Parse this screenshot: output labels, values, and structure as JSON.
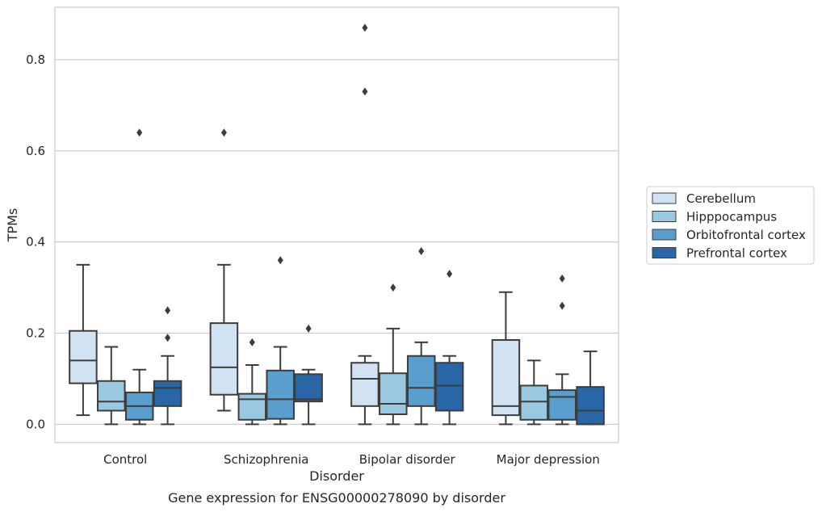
{
  "chart_data": {
    "type": "boxplot",
    "xlabel": "Disorder",
    "ylabel": "TPMs",
    "caption": "Gene expression for ENSG00000278090 by disorder",
    "ylim": [
      -0.04,
      0.915
    ],
    "yticks": [
      0.0,
      0.2,
      0.4,
      0.6,
      0.8
    ],
    "ytick_labels": [
      "0.0",
      "0.2",
      "0.4",
      "0.6",
      "0.8"
    ],
    "grid": "horizontal",
    "legend_position": "right",
    "categories": [
      "Control",
      "Schizophrenia",
      "Bipolar disorder",
      "Major depression"
    ],
    "series": [
      {
        "name": "Cerebellum",
        "color": "#d1e2f2",
        "boxes": [
          {
            "whisker_low": 0.02,
            "q1": 0.09,
            "median": 0.14,
            "q3": 0.205,
            "whisker_high": 0.35,
            "outliers": []
          },
          {
            "whisker_low": 0.03,
            "q1": 0.065,
            "median": 0.125,
            "q3": 0.222,
            "whisker_high": 0.35,
            "outliers": [
              0.64
            ]
          },
          {
            "whisker_low": 0.0,
            "q1": 0.04,
            "median": 0.1,
            "q3": 0.135,
            "whisker_high": 0.15,
            "outliers": [
              0.73,
              0.87
            ]
          },
          {
            "whisker_low": 0.0,
            "q1": 0.02,
            "median": 0.04,
            "q3": 0.185,
            "whisker_high": 0.29,
            "outliers": []
          }
        ]
      },
      {
        "name": "Hipppocampus",
        "color": "#9ac8e0",
        "boxes": [
          {
            "whisker_low": 0.0,
            "q1": 0.03,
            "median": 0.05,
            "q3": 0.095,
            "whisker_high": 0.17,
            "outliers": []
          },
          {
            "whisker_low": 0.0,
            "q1": 0.01,
            "median": 0.055,
            "q3": 0.067,
            "whisker_high": 0.13,
            "outliers": [
              0.18
            ]
          },
          {
            "whisker_low": 0.0,
            "q1": 0.022,
            "median": 0.045,
            "q3": 0.112,
            "whisker_high": 0.21,
            "outliers": [
              0.3
            ]
          },
          {
            "whisker_low": 0.0,
            "q1": 0.01,
            "median": 0.05,
            "q3": 0.085,
            "whisker_high": 0.14,
            "outliers": []
          }
        ]
      },
      {
        "name": "Orbitofrontal cortex",
        "color": "#5a9ecd",
        "boxes": [
          {
            "whisker_low": 0.0,
            "q1": 0.01,
            "median": 0.04,
            "q3": 0.07,
            "whisker_high": 0.12,
            "outliers": [
              0.64
            ]
          },
          {
            "whisker_low": 0.0,
            "q1": 0.012,
            "median": 0.055,
            "q3": 0.118,
            "whisker_high": 0.17,
            "outliers": [
              0.36
            ]
          },
          {
            "whisker_low": 0.0,
            "q1": 0.04,
            "median": 0.08,
            "q3": 0.15,
            "whisker_high": 0.18,
            "outliers": [
              0.38
            ]
          },
          {
            "whisker_low": 0.0,
            "q1": 0.01,
            "median": 0.06,
            "q3": 0.075,
            "whisker_high": 0.11,
            "outliers": [
              0.26,
              0.32
            ]
          }
        ]
      },
      {
        "name": "Prefrontal cortex",
        "color": "#2866a8",
        "boxes": [
          {
            "whisker_low": 0.0,
            "q1": 0.04,
            "median": 0.08,
            "q3": 0.095,
            "whisker_high": 0.15,
            "outliers": [
              0.19,
              0.25
            ]
          },
          {
            "whisker_low": 0.0,
            "q1": 0.05,
            "median": 0.055,
            "q3": 0.11,
            "whisker_high": 0.12,
            "outliers": [
              0.21
            ]
          },
          {
            "whisker_low": 0.0,
            "q1": 0.03,
            "median": 0.085,
            "q3": 0.135,
            "whisker_high": 0.15,
            "outliers": [
              0.33
            ]
          },
          {
            "whisker_low": 0.0,
            "q1": 0.0,
            "median": 0.03,
            "q3": 0.082,
            "whisker_high": 0.16,
            "outliers": []
          }
        ]
      }
    ]
  }
}
